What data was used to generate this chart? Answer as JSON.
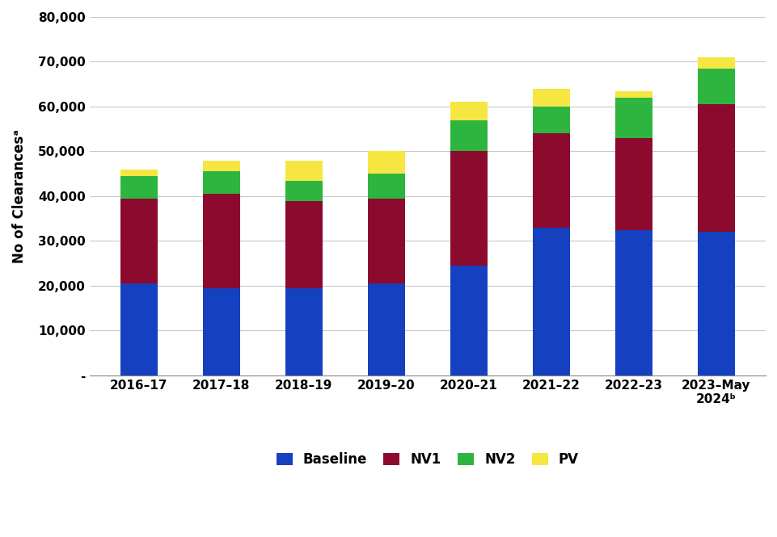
{
  "categories": [
    "2016–17",
    "2017–18",
    "2018–19",
    "2019–20",
    "2020–21",
    "2021–22",
    "2022–23",
    "2023–May\n2024ᵇ"
  ],
  "baseline": [
    20500,
    19500,
    19500,
    20500,
    24500,
    33000,
    32500,
    32000
  ],
  "nv1": [
    19000,
    21000,
    19500,
    19000,
    25500,
    21000,
    20500,
    28500
  ],
  "nv2": [
    5000,
    5000,
    4500,
    5500,
    7000,
    6000,
    9000,
    8000
  ],
  "pv": [
    1500,
    2500,
    4500,
    5000,
    4000,
    4000,
    1500,
    2500
  ],
  "colors": {
    "baseline": "#1540c0",
    "nv1": "#8b0a2e",
    "nv2": "#2db53f",
    "pv": "#f5e642"
  },
  "ylabel": "No of Clearancesᵃ",
  "ylim": [
    0,
    80000
  ],
  "yticks": [
    0,
    10000,
    20000,
    30000,
    40000,
    50000,
    60000,
    70000,
    80000
  ],
  "ytick_labels": [
    "-",
    "10,000",
    "20,000",
    "30,000",
    "40,000",
    "50,000",
    "60,000",
    "70,000",
    "80,000"
  ],
  "legend_labels": [
    "Baseline",
    "NV1",
    "NV2",
    "PV"
  ],
  "background_color": "#ffffff",
  "grid_color": "#c8c8c8"
}
